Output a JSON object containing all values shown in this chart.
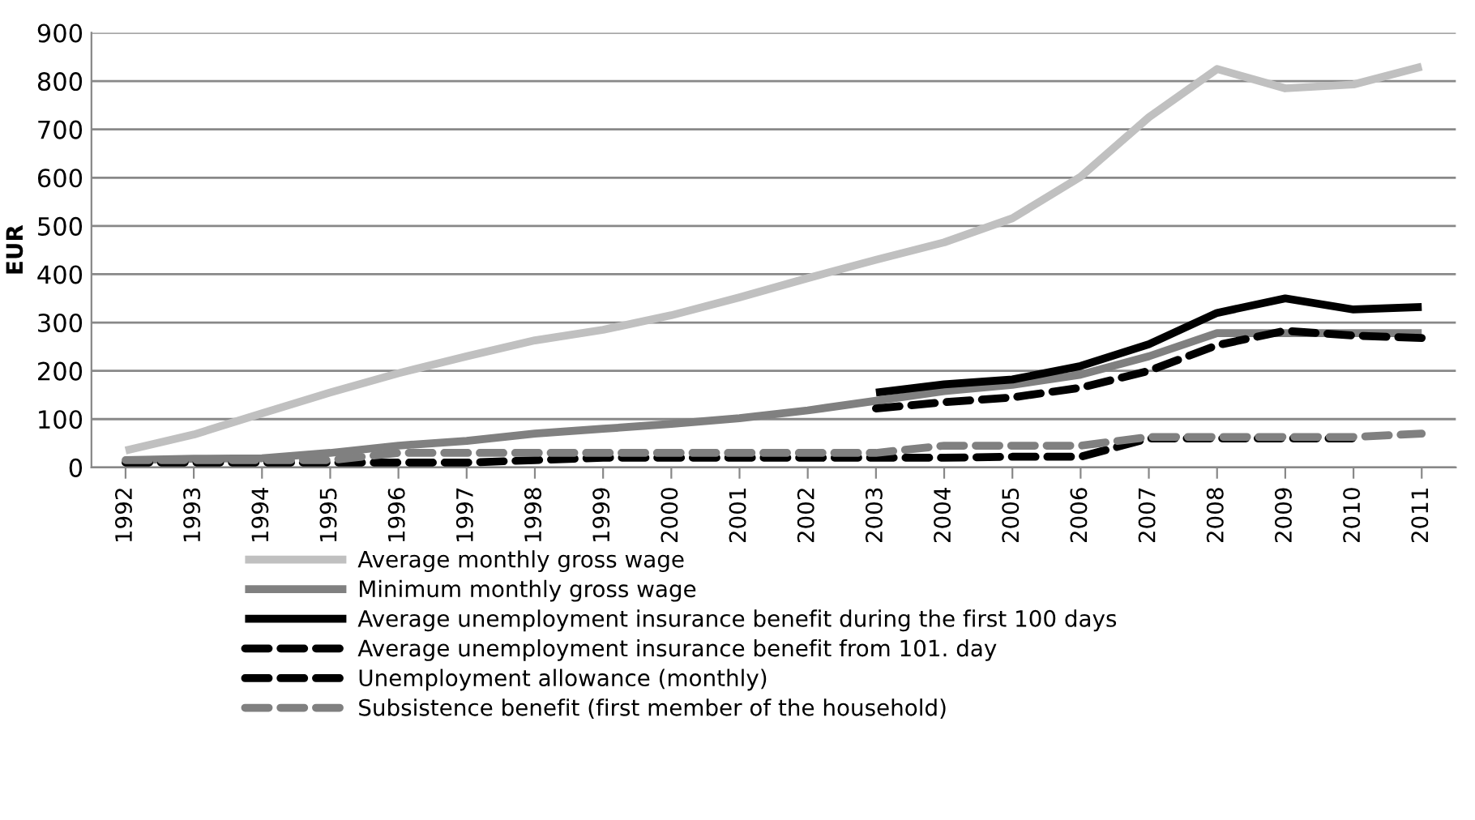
{
  "chart_data": {
    "type": "line",
    "ylabel": "EUR",
    "categories": [
      "1992",
      "1993",
      "1994",
      "1995",
      "1996",
      "1997",
      "1998",
      "1999",
      "2000",
      "2001",
      "2002",
      "2003",
      "2004",
      "2005",
      "2006",
      "2007",
      "2008",
      "2009",
      "2010",
      "2011"
    ],
    "series": [
      {
        "name": "Average monthly gross wage",
        "color": "#c0c0c0",
        "line_style": "solid",
        "values": [
          35,
          68,
          112,
          155,
          195,
          230,
          263,
          285,
          315,
          352,
          392,
          430,
          466,
          516,
          602,
          725,
          825,
          785,
          793,
          830
        ]
      },
      {
        "name": "Minimum monthly gross wage",
        "color": "#808080",
        "line_style": "solid",
        "values": [
          15,
          18,
          19,
          30,
          45,
          55,
          70,
          80,
          90,
          102,
          118,
          138,
          158,
          171,
          192,
          230,
          278,
          278,
          278,
          278
        ]
      },
      {
        "name": "Average unemployment insurance benefit during the first 100 days",
        "color": "#000000",
        "line_style": "solid",
        "values": [
          null,
          null,
          null,
          null,
          null,
          null,
          null,
          null,
          null,
          null,
          null,
          155,
          172,
          182,
          210,
          255,
          320,
          350,
          327,
          332
        ]
      },
      {
        "name": "Average unemployment insurance benefit from 101. day",
        "color": "#000000",
        "line_style": "dashed",
        "values": [
          null,
          null,
          null,
          null,
          null,
          null,
          null,
          null,
          null,
          null,
          null,
          122,
          135,
          145,
          165,
          200,
          253,
          283,
          273,
          268
        ]
      },
      {
        "name": "Unemployment allowance (monthly)",
        "color": "#000000",
        "line_style": "dashed",
        "values": [
          10,
          10,
          10,
          10,
          10,
          10,
          15,
          20,
          20,
          20,
          20,
          20,
          20,
          22,
          22,
          60,
          60,
          60,
          60,
          null
        ]
      },
      {
        "name": "Subsistence benefit (first member of the household)",
        "color": "#808080",
        "line_style": "dashed",
        "values": [
          15,
          15,
          15,
          15,
          30,
          30,
          30,
          30,
          30,
          30,
          30,
          30,
          45,
          45,
          45,
          63,
          63,
          63,
          63,
          70
        ]
      }
    ],
    "ylim": [
      0,
      900
    ],
    "yticks": [
      0,
      100,
      200,
      300,
      400,
      500,
      600,
      700,
      800,
      900
    ],
    "grid": "y",
    "legend": "bottom",
    "marker": "none"
  }
}
